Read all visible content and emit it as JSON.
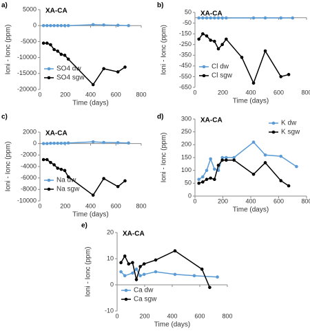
{
  "chart_data": [
    {
      "type": "line",
      "label": "a)",
      "annotation": "XA-CA",
      "xlabel": "Time (days)",
      "ylabel": "Ioni - Ionc (ppm)",
      "xlim": [
        0,
        800
      ],
      "xticks": [
        0,
        200,
        400,
        600,
        800
      ],
      "ylim": [
        -20000,
        5000
      ],
      "yticks": [
        -20000,
        -15000,
        -10000,
        -5000,
        0,
        5000
      ],
      "legend": "lower left",
      "series": [
        {
          "name": "SO4 dw",
          "color": "#5b9bd5",
          "x": [
            28,
            56,
            84,
            112,
            140,
            168,
            196,
            224,
            420,
            504,
            616,
            700
          ],
          "values": [
            0,
            0,
            0,
            0,
            0,
            0,
            0,
            0,
            300,
            200,
            100,
            0
          ]
        },
        {
          "name": "SO4 sgw",
          "color": "#000000",
          "x": [
            28,
            56,
            84,
            112,
            140,
            168,
            196,
            224,
            420,
            504,
            616,
            672
          ],
          "values": [
            -5500,
            -5500,
            -6000,
            -7500,
            -8000,
            -9000,
            -9300,
            -10500,
            -18500,
            -13500,
            -14500,
            -13000
          ]
        }
      ]
    },
    {
      "type": "line",
      "label": "b)",
      "annotation": "XA-CA",
      "xlabel": "Time (days)",
      "ylabel": "Ioni - Ionc (ppm)",
      "xlim": [
        0,
        800
      ],
      "xticks": [
        0,
        200,
        400,
        600,
        800
      ],
      "ylim": [
        -650,
        50
      ],
      "yticks": [
        -650,
        -550,
        -450,
        -350,
        -250,
        -150,
        -50,
        50
      ],
      "legend": "lower left",
      "series": [
        {
          "name": "Cl dw",
          "color": "#5b9bd5",
          "x": [
            28,
            56,
            84,
            112,
            140,
            168,
            196,
            224,
            420,
            504,
            616,
            700
          ],
          "values": [
            -2,
            -2,
            -2,
            -2,
            -2,
            -2,
            -2,
            -2,
            -2,
            -2,
            -2,
            -2
          ]
        },
        {
          "name": "Cl sgw",
          "color": "#000000",
          "x": [
            28,
            56,
            84,
            112,
            140,
            168,
            196,
            224,
            336,
            420,
            504,
            616,
            672
          ],
          "values": [
            -200,
            -150,
            -170,
            -210,
            -220,
            -290,
            -250,
            -200,
            -370,
            -610,
            -310,
            -550,
            -530
          ]
        }
      ]
    },
    {
      "type": "line",
      "label": "c)",
      "annotation": "XA-CA",
      "xlabel": "Time (days)",
      "ylabel": "Ioni - Ionc (ppm)",
      "xlim": [
        0,
        800
      ],
      "xticks": [
        0,
        200,
        400,
        600,
        800
      ],
      "ylim": [
        -10000,
        2000
      ],
      "yticks": [
        -10000,
        -8000,
        -6000,
        -4000,
        -2000,
        0,
        2000
      ],
      "legend": "lower left",
      "series": [
        {
          "name": "Na dw",
          "color": "#5b9bd5",
          "x": [
            28,
            56,
            84,
            112,
            140,
            168,
            196,
            224,
            420,
            504,
            616,
            700
          ],
          "values": [
            0,
            0,
            50,
            50,
            50,
            50,
            50,
            100,
            300,
            200,
            150,
            100
          ]
        },
        {
          "name": "Na sgw",
          "color": "#000000",
          "x": [
            28,
            56,
            84,
            112,
            140,
            168,
            196,
            224,
            420,
            504,
            616,
            672
          ],
          "values": [
            -2800,
            -2800,
            -3300,
            -3700,
            -4300,
            -4500,
            -4700,
            -5800,
            -9000,
            -6100,
            -7500,
            -6500
          ]
        }
      ]
    },
    {
      "type": "line",
      "label": "d)",
      "annotation": "XA-CA",
      "xlabel": "Time (days)",
      "ylabel": "Ioni - Ionc (ppm)",
      "xlim": [
        0,
        800
      ],
      "xticks": [
        0,
        200,
        400,
        600,
        800
      ],
      "ylim": [
        0,
        300
      ],
      "yticks": [
        0,
        50,
        100,
        150,
        200,
        250,
        300
      ],
      "legend": "upper right",
      "series": [
        {
          "name": "K dw",
          "color": "#5b9bd5",
          "x": [
            28,
            56,
            84,
            112,
            140,
            168,
            196,
            224,
            280,
            420,
            504,
            616,
            728
          ],
          "values": [
            65,
            75,
            100,
            145,
            105,
            100,
            150,
            150,
            150,
            210,
            160,
            155,
            115
          ]
        },
        {
          "name": "K sgw",
          "color": "#000000",
          "x": [
            28,
            56,
            84,
            112,
            140,
            168,
            196,
            224,
            280,
            420,
            504,
            616,
            672
          ],
          "values": [
            50,
            55,
            65,
            70,
            65,
            120,
            140,
            140,
            140,
            85,
            130,
            60,
            40
          ]
        }
      ]
    },
    {
      "type": "line",
      "label": "e)",
      "annotation": "XA-CA",
      "xlabel": "Time (days)",
      "ylabel": "Ioni - Ionc (ppm)",
      "xlim": [
        0,
        800
      ],
      "xticks": [
        0,
        200,
        400,
        600,
        800
      ],
      "ylim": [
        -10,
        20
      ],
      "yticks": [
        -10,
        0,
        10,
        20
      ],
      "legend": "lower left",
      "series": [
        {
          "name": "Ca dw",
          "color": "#5b9bd5",
          "x": [
            28,
            56,
            112,
            140,
            168,
            196,
            280,
            420,
            560,
            728
          ],
          "values": [
            5,
            3.5,
            4.5,
            6,
            3.5,
            4,
            5,
            4,
            3.5,
            3
          ]
        },
        {
          "name": "Ca sgw",
          "color": "#000000",
          "x": [
            28,
            56,
            84,
            112,
            140,
            168,
            196,
            280,
            420,
            616,
            672
          ],
          "values": [
            8.5,
            11,
            8,
            8.5,
            2,
            7,
            8,
            9.5,
            13,
            6,
            -1
          ]
        }
      ]
    }
  ]
}
